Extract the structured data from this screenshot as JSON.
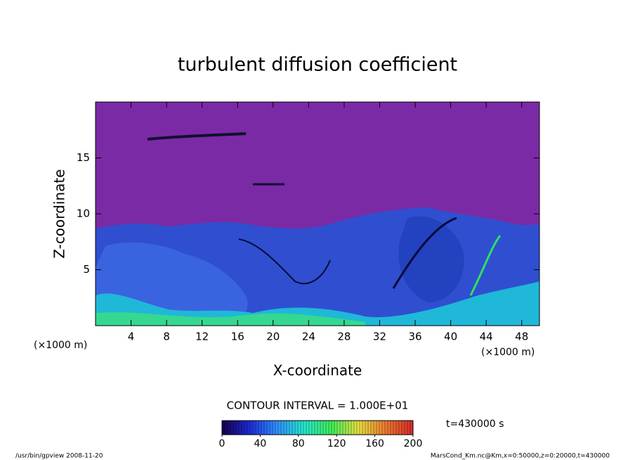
{
  "chart_data": {
    "type": "contour",
    "title": "turbulent diffusion coefficient",
    "xlabel": "X-coordinate",
    "ylabel": "Z-coordinate",
    "x_unit": "(×1000 m)",
    "y_unit": "(×1000 m)",
    "xlim": [
      0,
      50
    ],
    "xticks": [
      4,
      8,
      12,
      16,
      20,
      24,
      28,
      32,
      36,
      40,
      44,
      48
    ],
    "ylim": [
      0,
      20
    ],
    "yticks": [
      5,
      10,
      15
    ],
    "contour_interval": "CONTOUR INTERVAL = 1.000E+01",
    "time_label": "t=430000 s",
    "colorbar": {
      "lim": [
        0,
        200
      ],
      "ticks": [
        0,
        40,
        80,
        120,
        160,
        200
      ],
      "colors": [
        "#14004a",
        "#1e2ad8",
        "#2f8fff",
        "#25e8d0",
        "#3ef05a",
        "#e6e040",
        "#ee7a30",
        "#d82a2a"
      ]
    },
    "footer_left": "/usr/bin/gpview  2008-11-20",
    "footer_right": "MarsCond_Km.nc@Km,x=0:50000,z=0:20000,t=430000"
  }
}
